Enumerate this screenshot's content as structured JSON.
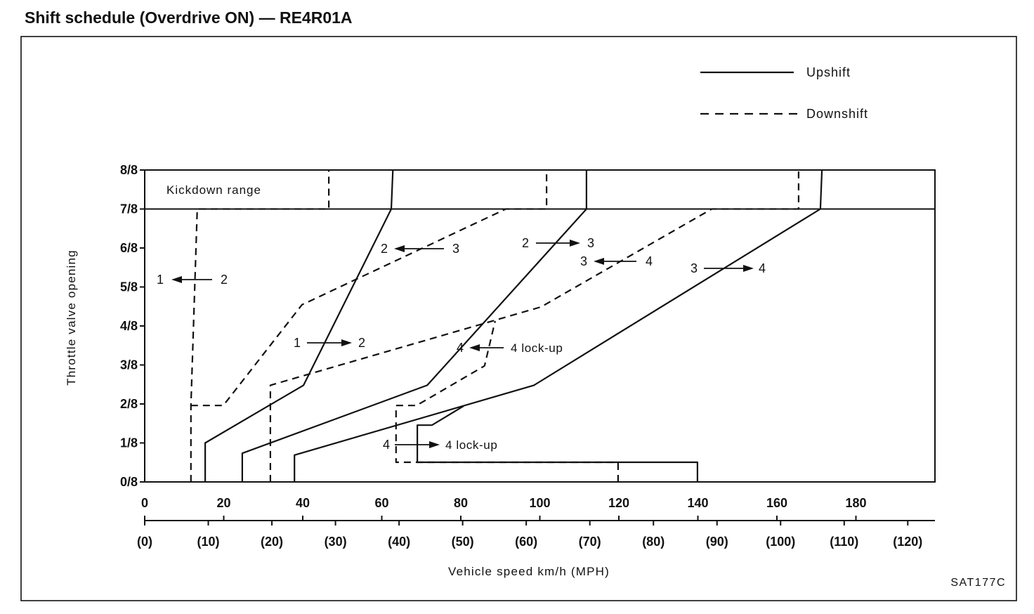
{
  "figure_code": "SAT177C",
  "chart_data": {
    "type": "line",
    "title": "Shift schedule (Overdrive ON) — RE4R01A",
    "xlabel": "Vehicle speed km/h (MPH)",
    "ylabel": "Throttle valve opening",
    "xlim": [
      0,
      200
    ],
    "ylim": [
      0,
      1
    ],
    "grid": false,
    "x_ticks": [
      0,
      20,
      40,
      60,
      80,
      100,
      120,
      140,
      160,
      180
    ],
    "x_tick_labels": [
      "0",
      "20",
      "40",
      "60",
      "80",
      "100",
      "120",
      "140",
      "160",
      "180"
    ],
    "x2_ticks_mph": [
      0,
      10,
      20,
      30,
      40,
      50,
      60,
      70,
      80,
      90,
      100,
      110,
      120
    ],
    "x2_tick_labels": [
      "(0)",
      "(10)",
      "(20)",
      "(30)",
      "(40)",
      "(50)",
      "(60)",
      "(70)",
      "(80)",
      "(90)",
      "(100)",
      "(110)",
      "(120)"
    ],
    "y_ticks": [
      0,
      0.125,
      0.25,
      0.375,
      0.5,
      0.625,
      0.75,
      0.875,
      1
    ],
    "y_tick_labels": [
      "0/8",
      "1/8",
      "2/8",
      "3/8",
      "4/8",
      "5/8",
      "6/8",
      "7/8",
      "8/8"
    ],
    "legend_position": "top-right",
    "legend": [
      {
        "label": "Upshift",
        "style": "solid"
      },
      {
        "label": "Downshift",
        "style": "dashed"
      }
    ],
    "region": {
      "label": "Kickdown range",
      "y_from": 0.875,
      "y_to": 1
    },
    "series": [
      {
        "style": "solid",
        "points": [
          [
            15.3,
            0
          ],
          [
            15.3,
            0.125
          ],
          [
            40.2,
            0.31
          ],
          [
            62.4,
            0.875
          ],
          [
            62.8,
            1
          ]
        ]
      },
      {
        "style": "solid",
        "points": [
          [
            24.7,
            0
          ],
          [
            24.7,
            0.092
          ],
          [
            71.5,
            0.31
          ],
          [
            111.8,
            0.875
          ],
          [
            111.8,
            1
          ]
        ]
      },
      {
        "style": "solid",
        "points": [
          [
            37.9,
            0
          ],
          [
            37.9,
            0.086
          ],
          [
            98.5,
            0.31
          ],
          [
            171,
            0.875
          ],
          [
            171.4,
            1
          ]
        ]
      },
      {
        "style": "solid",
        "points": [
          [
            139.9,
            0
          ],
          [
            139.9,
            0.063
          ],
          [
            69,
            0.063
          ],
          [
            69,
            0.182
          ],
          [
            72.7,
            0.182
          ],
          [
            80.7,
            0.243
          ]
        ]
      },
      {
        "style": "dashed",
        "points": [
          [
            11.7,
            0
          ],
          [
            11.7,
            0.245
          ],
          [
            13.3,
            0.875
          ],
          [
            46.6,
            0.875
          ],
          [
            46.6,
            1
          ]
        ]
      },
      {
        "style": "dashed",
        "points": [
          [
            11.7,
            0.245
          ],
          [
            19.9,
            0.245
          ],
          [
            39.8,
            0.568
          ],
          [
            91.4,
            0.875
          ],
          [
            101.7,
            0.875
          ],
          [
            101.7,
            1
          ]
        ]
      },
      {
        "style": "dashed",
        "points": [
          [
            31.8,
            0
          ],
          [
            31.8,
            0.31
          ],
          [
            100.3,
            0.561
          ],
          [
            143.5,
            0.875
          ],
          [
            165.5,
            0.875
          ],
          [
            165.5,
            1
          ]
        ]
      },
      {
        "style": "dashed",
        "points": [
          [
            119.8,
            0
          ],
          [
            119.8,
            0.063
          ],
          [
            63.6,
            0.063
          ],
          [
            63.6,
            0.245
          ],
          [
            68.8,
            0.245
          ],
          [
            86,
            0.372
          ],
          [
            88.7,
            0.516
          ]
        ]
      }
    ],
    "annotations": [
      {
        "left": "1",
        "right": "2",
        "arrow": "left"
      },
      {
        "left": "2",
        "right": "3",
        "arrow": "left"
      },
      {
        "left": "2",
        "right": "3",
        "arrow": "right"
      },
      {
        "left": "3",
        "right": "4",
        "arrow": "left"
      },
      {
        "left": "3",
        "right": "4",
        "arrow": "right"
      },
      {
        "left": "1",
        "right": "2",
        "arrow": "right"
      },
      {
        "left": "4",
        "right": "4 lock-up",
        "arrow": "left"
      },
      {
        "left": "4",
        "right": "4 lock-up",
        "arrow": "right"
      }
    ]
  }
}
